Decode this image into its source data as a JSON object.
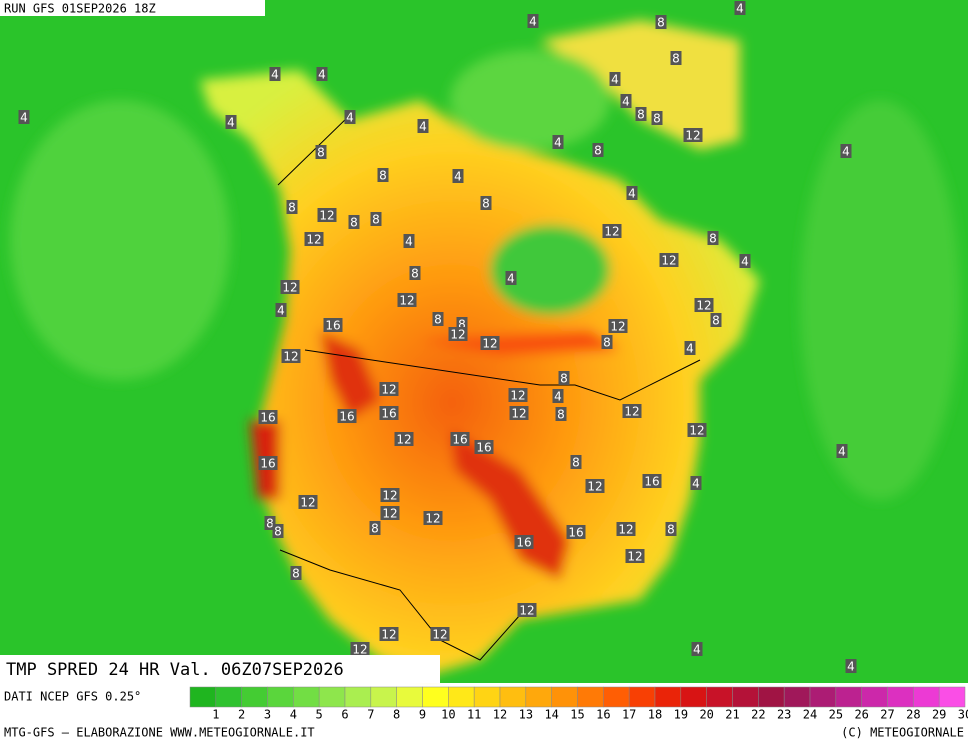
{
  "header": {
    "title": "RUN GFS 01SEP2026 18Z"
  },
  "map": {
    "caption": "TMP SPRED 24 HR Val. 06Z07SEP2026",
    "labels": [
      4,
      4,
      8,
      8,
      4,
      4,
      4,
      4,
      8,
      8,
      12,
      4,
      4,
      4,
      4,
      4,
      8,
      4,
      8,
      8,
      4,
      8,
      4,
      8,
      12,
      8,
      8,
      12,
      4,
      12,
      8,
      12,
      4,
      8,
      4,
      12,
      12,
      4,
      12,
      8,
      16,
      8,
      8,
      12,
      12,
      8,
      12,
      12,
      4,
      12,
      12,
      8,
      4,
      16,
      16,
      16,
      12,
      8,
      12,
      12,
      12,
      16,
      16,
      4,
      16,
      8,
      12,
      16,
      4,
      12,
      12,
      12,
      12,
      8,
      8,
      8,
      16,
      12,
      8,
      16,
      12,
      8,
      12,
      12,
      12,
      12,
      4,
      4
    ]
  },
  "legend": {
    "source": "DATI NCEP GFS 0.25°",
    "ticks": [
      1,
      2,
      3,
      4,
      5,
      6,
      7,
      8,
      9,
      10,
      11,
      12,
      13,
      14,
      15,
      16,
      17,
      18,
      19,
      20,
      21,
      22,
      23,
      24,
      25,
      26,
      27,
      28,
      29,
      30
    ],
    "colors": [
      "#1fb51f",
      "#2fc22f",
      "#44cc33",
      "#5ad63c",
      "#72de44",
      "#8ee64c",
      "#aaee50",
      "#c8f44c",
      "#e8fa3c",
      "#ffff1e",
      "#ffe818",
      "#ffd414",
      "#ffbe10",
      "#ffa80c",
      "#ff9208",
      "#ff7a06",
      "#ff5e04",
      "#f84004",
      "#ea2408",
      "#d81414",
      "#c81228",
      "#b41238",
      "#a01444",
      "#a0185a",
      "#ac1c74",
      "#bc2290",
      "#cc28aa",
      "#dc30c0",
      "#ec3ad4",
      "#fa4ee6"
    ]
  },
  "footer": {
    "left": "MTG-GFS — ELABORAZIONE WWW.METEOGIORNALE.IT",
    "right": "(C) METEOGIORNALE"
  }
}
